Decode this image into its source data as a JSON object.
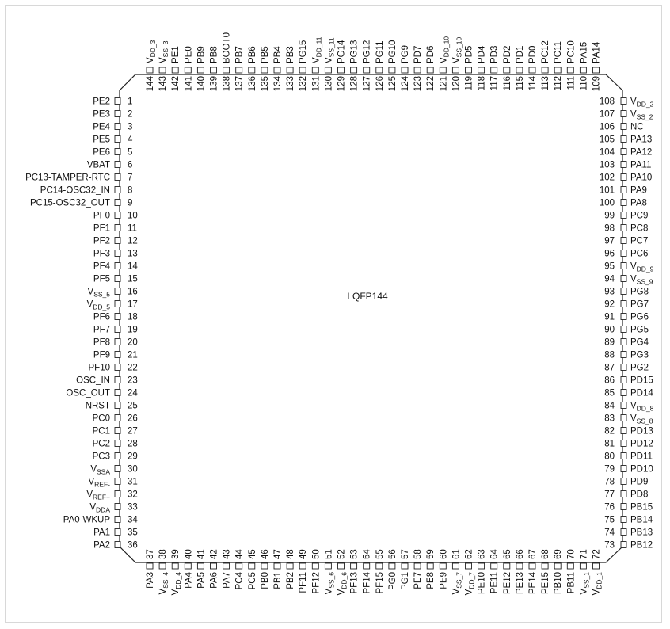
{
  "package_label": "LQFP144",
  "left_pins": [
    {
      "num": "1",
      "name": "PE2"
    },
    {
      "num": "2",
      "name": "PE3"
    },
    {
      "num": "3",
      "name": "PE4"
    },
    {
      "num": "4",
      "name": "PE5"
    },
    {
      "num": "5",
      "name": "PE6"
    },
    {
      "num": "6",
      "name": "VBAT"
    },
    {
      "num": "7",
      "name": "PC13-TAMPER-RTC"
    },
    {
      "num": "8",
      "name": "PC14-OSC32_IN"
    },
    {
      "num": "9",
      "name": "PC15-OSC32_OUT"
    },
    {
      "num": "10",
      "name": "PF0"
    },
    {
      "num": "11",
      "name": "PF1"
    },
    {
      "num": "12",
      "name": "PF2"
    },
    {
      "num": "13",
      "name": "PF3"
    },
    {
      "num": "14",
      "name": "PF4"
    },
    {
      "num": "15",
      "name": "PF5"
    },
    {
      "num": "16",
      "name": "V",
      "sub": "SS_5"
    },
    {
      "num": "17",
      "name": "V",
      "sub": "DD_5"
    },
    {
      "num": "18",
      "name": "PF6"
    },
    {
      "num": "19",
      "name": "PF7"
    },
    {
      "num": "20",
      "name": "PF8"
    },
    {
      "num": "21",
      "name": "PF9"
    },
    {
      "num": "22",
      "name": "PF10"
    },
    {
      "num": "23",
      "name": "OSC_IN"
    },
    {
      "num": "24",
      "name": "OSC_OUT"
    },
    {
      "num": "25",
      "name": "NRST"
    },
    {
      "num": "26",
      "name": "PC0"
    },
    {
      "num": "27",
      "name": "PC1"
    },
    {
      "num": "28",
      "name": "PC2"
    },
    {
      "num": "29",
      "name": "PC3"
    },
    {
      "num": "30",
      "name": "V",
      "sub": "SSA"
    },
    {
      "num": "31",
      "name": "V",
      "sub": "REF-"
    },
    {
      "num": "32",
      "name": "V",
      "sub": "REF+"
    },
    {
      "num": "33",
      "name": "V",
      "sub": "DDA"
    },
    {
      "num": "34",
      "name": "PA0-WKUP"
    },
    {
      "num": "35",
      "name": "PA1"
    },
    {
      "num": "36",
      "name": "PA2"
    }
  ],
  "bottom_pins": [
    {
      "num": "37",
      "name": "PA3"
    },
    {
      "num": "38",
      "name": "V",
      "sub": "SS_4"
    },
    {
      "num": "39",
      "name": "V",
      "sub": "DD_4"
    },
    {
      "num": "40",
      "name": "PA4"
    },
    {
      "num": "41",
      "name": "PA5"
    },
    {
      "num": "42",
      "name": "PA6"
    },
    {
      "num": "43",
      "name": "PA7"
    },
    {
      "num": "44",
      "name": "PC4"
    },
    {
      "num": "45",
      "name": "PC5"
    },
    {
      "num": "46",
      "name": "PB0"
    },
    {
      "num": "47",
      "name": "PB1"
    },
    {
      "num": "48",
      "name": "PB2"
    },
    {
      "num": "49",
      "name": "PF11"
    },
    {
      "num": "50",
      "name": "PF12"
    },
    {
      "num": "51",
      "name": "V",
      "sub": "SS_6"
    },
    {
      "num": "52",
      "name": "V",
      "sub": "DD_6"
    },
    {
      "num": "53",
      "name": "PF13"
    },
    {
      "num": "54",
      "name": "PF14"
    },
    {
      "num": "55",
      "name": "PF15"
    },
    {
      "num": "56",
      "name": "PG0"
    },
    {
      "num": "57",
      "name": "PG1"
    },
    {
      "num": "58",
      "name": "PE7"
    },
    {
      "num": "59",
      "name": "PE8"
    },
    {
      "num": "60",
      "name": "PE9"
    },
    {
      "num": "61",
      "name": "V",
      "sub": "SS_7"
    },
    {
      "num": "62",
      "name": "V",
      "sub": "DD_7"
    },
    {
      "num": "63",
      "name": "PE10"
    },
    {
      "num": "64",
      "name": "PE11"
    },
    {
      "num": "65",
      "name": "PE12"
    },
    {
      "num": "66",
      "name": "PE13"
    },
    {
      "num": "67",
      "name": "PE14"
    },
    {
      "num": "68",
      "name": "PE15"
    },
    {
      "num": "69",
      "name": "PB10"
    },
    {
      "num": "70",
      "name": "PB11"
    },
    {
      "num": "71",
      "name": "V",
      "sub": "SS_1"
    },
    {
      "num": "72",
      "name": "V",
      "sub": "DD_1"
    }
  ],
  "right_pins": [
    {
      "num": "73",
      "name": "PB12"
    },
    {
      "num": "74",
      "name": "PB13"
    },
    {
      "num": "75",
      "name": "PB14"
    },
    {
      "num": "76",
      "name": "PB15"
    },
    {
      "num": "77",
      "name": "PD8"
    },
    {
      "num": "78",
      "name": "PD9"
    },
    {
      "num": "79",
      "name": "PD10"
    },
    {
      "num": "80",
      "name": "PD11"
    },
    {
      "num": "81",
      "name": "PD12"
    },
    {
      "num": "82",
      "name": "PD13"
    },
    {
      "num": "83",
      "name": "V",
      "sub": "SS_8"
    },
    {
      "num": "84",
      "name": "V",
      "sub": "DD_8"
    },
    {
      "num": "85",
      "name": "PD14"
    },
    {
      "num": "86",
      "name": "PD15"
    },
    {
      "num": "87",
      "name": "PG2"
    },
    {
      "num": "88",
      "name": "PG3"
    },
    {
      "num": "89",
      "name": "PG4"
    },
    {
      "num": "90",
      "name": "PG5"
    },
    {
      "num": "91",
      "name": "PG6"
    },
    {
      "num": "92",
      "name": "PG7"
    },
    {
      "num": "93",
      "name": "PG8"
    },
    {
      "num": "94",
      "name": "V",
      "sub": "SS_9"
    },
    {
      "num": "95",
      "name": "V",
      "sub": "DD_9"
    },
    {
      "num": "96",
      "name": "PC6"
    },
    {
      "num": "97",
      "name": "PC7"
    },
    {
      "num": "98",
      "name": "PC8"
    },
    {
      "num": "99",
      "name": "PC9"
    },
    {
      "num": "100",
      "name": "PA8"
    },
    {
      "num": "101",
      "name": "PA9"
    },
    {
      "num": "102",
      "name": "PA10"
    },
    {
      "num": "103",
      "name": "PA11"
    },
    {
      "num": "104",
      "name": "PA12"
    },
    {
      "num": "105",
      "name": "PA13"
    },
    {
      "num": "106",
      "name": "NC"
    },
    {
      "num": "107",
      "name": "V",
      "sub": "SS_2"
    },
    {
      "num": "108",
      "name": "V",
      "sub": "DD_2"
    }
  ],
  "top_pins": [
    {
      "num": "109",
      "name": "PA14"
    },
    {
      "num": "110",
      "name": "PA15"
    },
    {
      "num": "111",
      "name": "PC10"
    },
    {
      "num": "112",
      "name": "PC11"
    },
    {
      "num": "113",
      "name": "PC12"
    },
    {
      "num": "114",
      "name": "PD0"
    },
    {
      "num": "115",
      "name": "PD1"
    },
    {
      "num": "116",
      "name": "PD2"
    },
    {
      "num": "117",
      "name": "PD3"
    },
    {
      "num": "118",
      "name": "PD4"
    },
    {
      "num": "119",
      "name": "PD5"
    },
    {
      "num": "120",
      "name": "V",
      "sub": "SS_10"
    },
    {
      "num": "121",
      "name": "V",
      "sub": "DD_10"
    },
    {
      "num": "122",
      "name": "PD6"
    },
    {
      "num": "123",
      "name": "PD7"
    },
    {
      "num": "124",
      "name": "PG9"
    },
    {
      "num": "125",
      "name": "PG10"
    },
    {
      "num": "126",
      "name": "PG11"
    },
    {
      "num": "127",
      "name": "PG12"
    },
    {
      "num": "128",
      "name": "PG13"
    },
    {
      "num": "129",
      "name": "PG14"
    },
    {
      "num": "130",
      "name": "V",
      "sub": "SS_11"
    },
    {
      "num": "131",
      "name": "V",
      "sub": "DD_11"
    },
    {
      "num": "132",
      "name": "PG15"
    },
    {
      "num": "133",
      "name": "PB3"
    },
    {
      "num": "134",
      "name": "PB4"
    },
    {
      "num": "135",
      "name": "PB5"
    },
    {
      "num": "136",
      "name": "PB6"
    },
    {
      "num": "137",
      "name": "PB7"
    },
    {
      "num": "138",
      "name": "BOOT0"
    },
    {
      "num": "139",
      "name": "PB8"
    },
    {
      "num": "140",
      "name": "PB9"
    },
    {
      "num": "141",
      "name": "PE0"
    },
    {
      "num": "142",
      "name": "PE1"
    },
    {
      "num": "143",
      "name": "V",
      "sub": "SS_3"
    },
    {
      "num": "144",
      "name": "V",
      "sub": "DD_3"
    }
  ]
}
